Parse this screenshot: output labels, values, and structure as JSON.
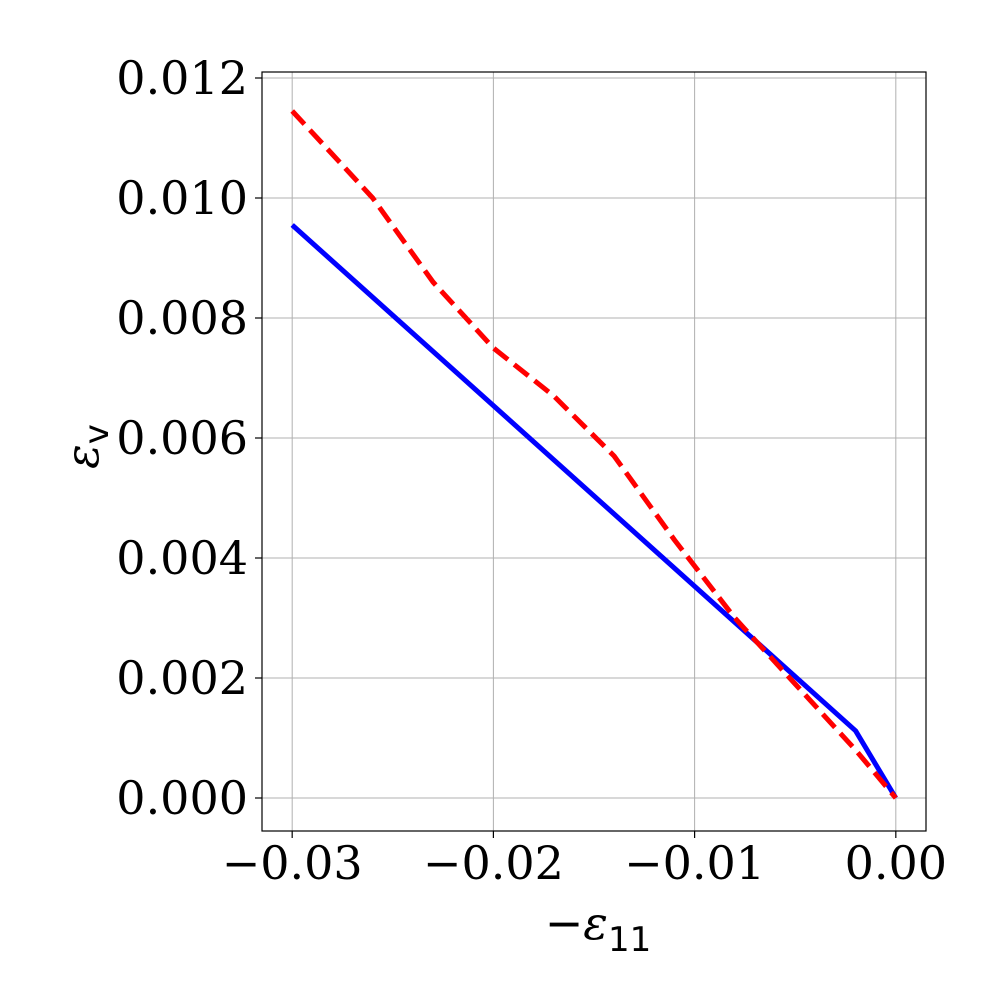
{
  "chart_data": {
    "type": "line",
    "xlabel": {
      "minus": "−",
      "symbol": "ε",
      "sub": "11"
    },
    "ylabel": {
      "symbol": "ε",
      "sub": "v"
    },
    "xlim": [
      -0.0315,
      0.0015
    ],
    "ylim": [
      -0.00055,
      0.0121
    ],
    "grid": true,
    "xticks": [
      -0.03,
      -0.02,
      -0.01,
      0.0
    ],
    "xtick_labels": [
      "−0.03",
      "−0.02",
      "−0.01",
      "0.00"
    ],
    "yticks": [
      0.0,
      0.002,
      0.004,
      0.006,
      0.008,
      0.01,
      0.012
    ],
    "ytick_labels": [
      "0.000",
      "0.002",
      "0.004",
      "0.006",
      "0.008",
      "0.010",
      "0.012"
    ],
    "series": [
      {
        "style": "solid",
        "color": "#0000ff",
        "x": [
          -0.03,
          -0.002,
          0.0
        ],
        "y": [
          0.00955,
          0.00112,
          0.0
        ]
      },
      {
        "style": "dashed",
        "color": "#ff0000",
        "x": [
          -0.03,
          -0.0282,
          -0.026,
          -0.023,
          -0.02,
          -0.017,
          -0.014,
          -0.011,
          -0.008,
          -0.005,
          -0.002,
          0.0
        ],
        "y": [
          0.01145,
          0.0108,
          0.01,
          0.0086,
          0.0075,
          0.0067,
          0.0057,
          0.0043,
          0.003,
          0.0019,
          0.0008,
          0.0
        ]
      }
    ]
  }
}
